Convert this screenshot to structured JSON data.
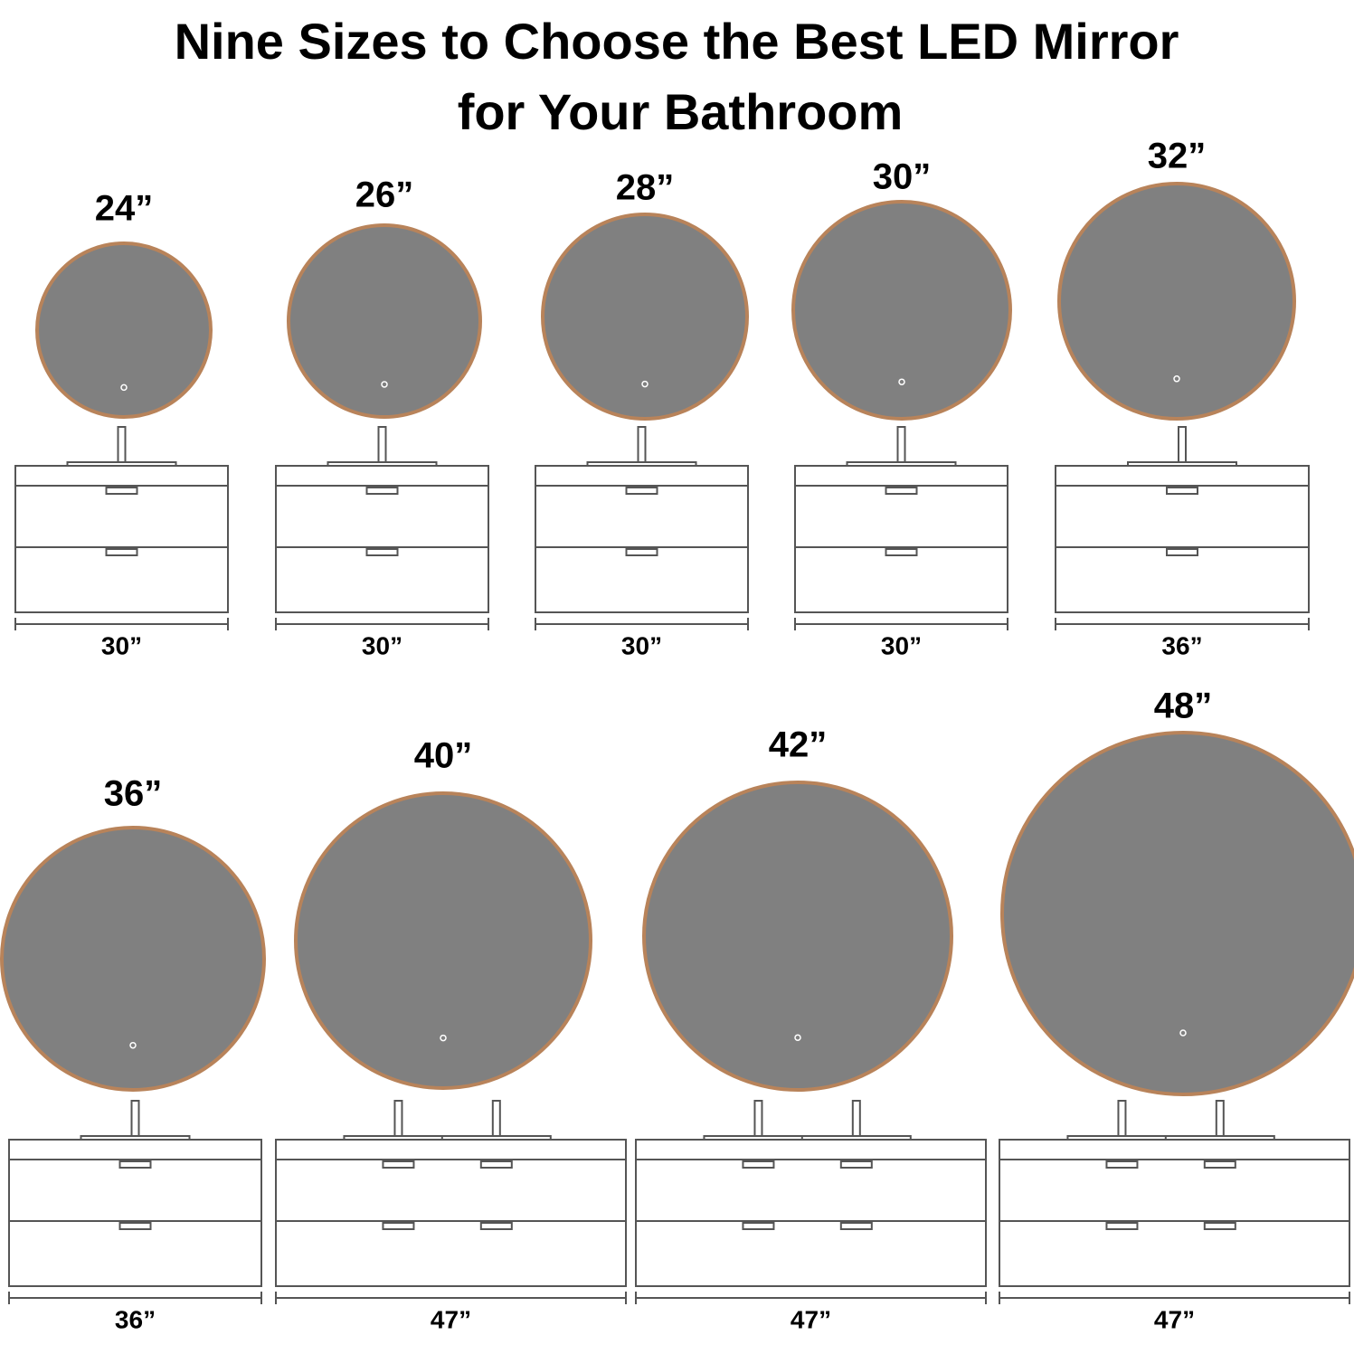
{
  "title": [
    "Nine Sizes to Choose the Best LED Mirror",
    "for Your Bathroom"
  ],
  "rows": [
    [
      {
        "mirror": "24”",
        "vanity": "30”"
      },
      {
        "mirror": "26”",
        "vanity": "30”"
      },
      {
        "mirror": "28”",
        "vanity": "30”"
      },
      {
        "mirror": "30”",
        "vanity": "30”"
      },
      {
        "mirror": "32”",
        "vanity": "36”"
      }
    ],
    [
      {
        "mirror": "36”",
        "vanity": "36”"
      },
      {
        "mirror": "40”",
        "vanity": "47”"
      },
      {
        "mirror": "42”",
        "vanity": "47”"
      },
      {
        "mirror": "48”",
        "vanity": "47”"
      }
    ]
  ]
}
